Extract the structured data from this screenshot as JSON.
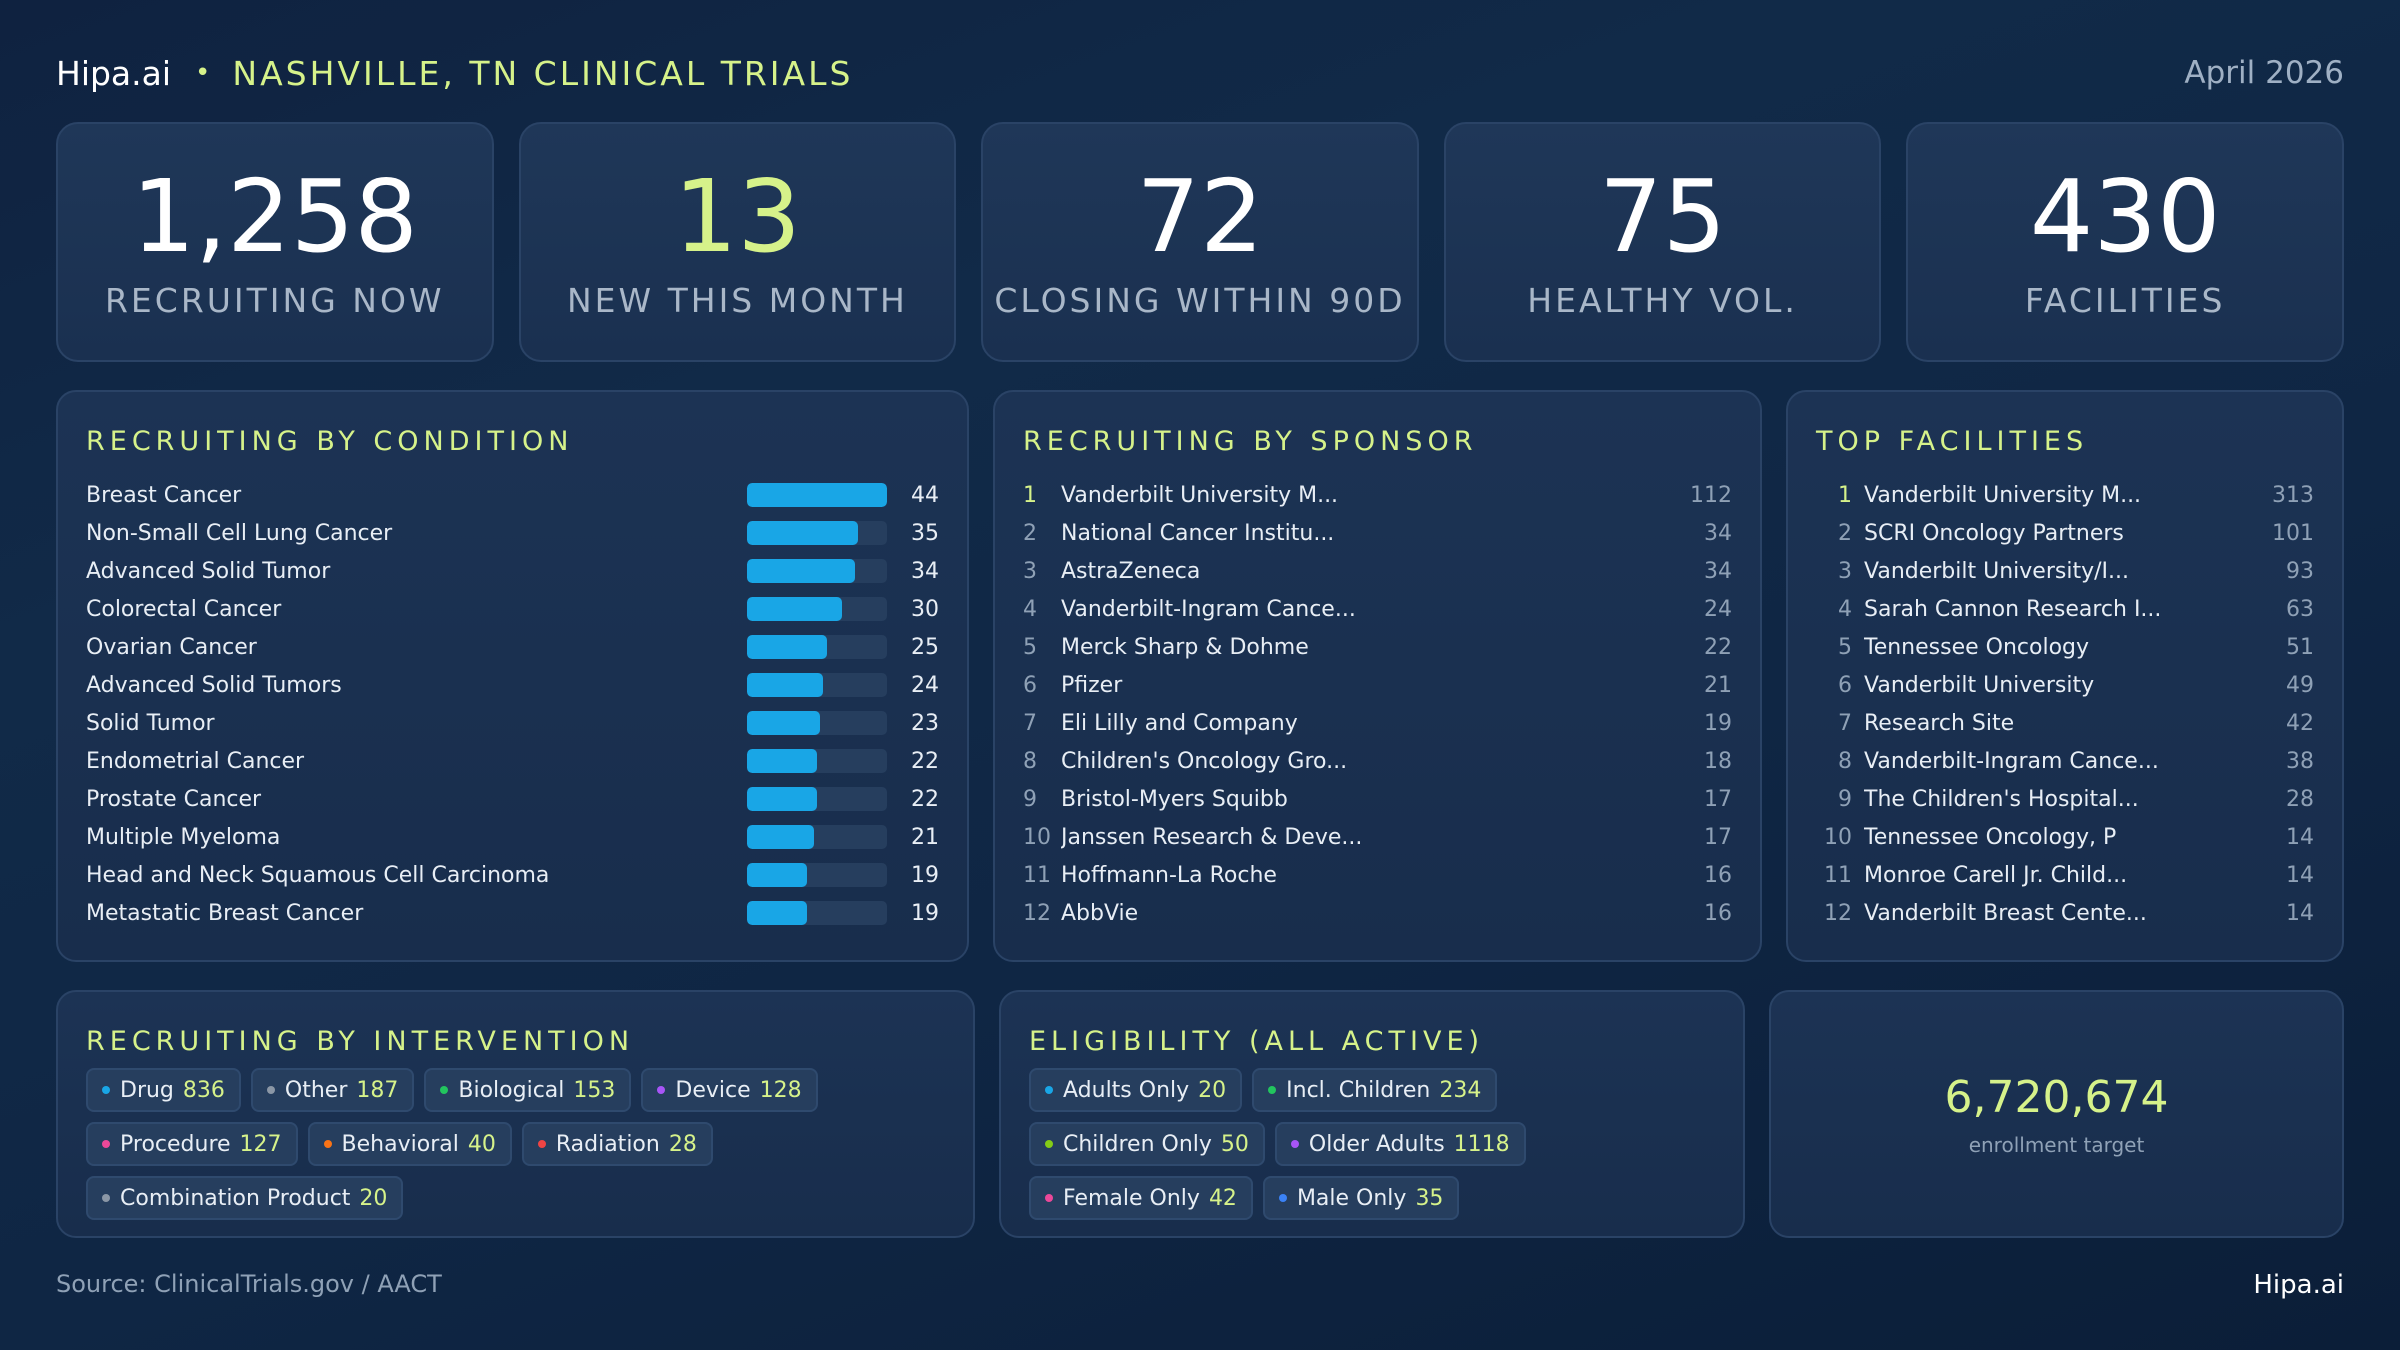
{
  "header": {
    "brand": "Hipa.ai",
    "separator": "•",
    "headline": "NASHVILLE, TN CLINICAL TRIALS",
    "date": "April 2026"
  },
  "stats": [
    {
      "value": "1,258",
      "label": "RECRUITING NOW",
      "accent": false
    },
    {
      "value": "13",
      "label": "NEW THIS MONTH",
      "accent": true
    },
    {
      "value": "72",
      "label": "CLOSING WITHIN 90D",
      "accent": false
    },
    {
      "value": "75",
      "label": "HEALTHY VOL.",
      "accent": false
    },
    {
      "value": "430",
      "label": "FACILITIES",
      "accent": false
    }
  ],
  "by_condition": {
    "title": "RECRUITING BY CONDITION",
    "bar_color": "#19a6e6",
    "max": 44,
    "items": [
      {
        "name": "Breast Cancer",
        "value": 44
      },
      {
        "name": "Non-Small Cell Lung Cancer",
        "value": 35
      },
      {
        "name": "Advanced Solid Tumor",
        "value": 34
      },
      {
        "name": "Colorectal Cancer",
        "value": 30
      },
      {
        "name": "Ovarian Cancer",
        "value": 25
      },
      {
        "name": "Advanced Solid Tumors",
        "value": 24
      },
      {
        "name": "Solid Tumor",
        "value": 23
      },
      {
        "name": "Endometrial Cancer",
        "value": 22
      },
      {
        "name": "Prostate Cancer",
        "value": 22
      },
      {
        "name": "Multiple Myeloma",
        "value": 21
      },
      {
        "name": "Head and Neck Squamous Cell Carcinoma",
        "value": 19
      },
      {
        "name": "Metastatic Breast Cancer",
        "value": 19
      }
    ]
  },
  "by_sponsor": {
    "title": "RECRUITING BY SPONSOR",
    "items": [
      {
        "rank": "1",
        "name": "Vanderbilt University M...",
        "count": "112"
      },
      {
        "rank": "2",
        "name": "National Cancer Institu...",
        "count": "34"
      },
      {
        "rank": "3",
        "name": "AstraZeneca",
        "count": "34"
      },
      {
        "rank": "4",
        "name": "Vanderbilt-Ingram Cance...",
        "count": "24"
      },
      {
        "rank": "5",
        "name": "Merck Sharp & Dohme",
        "count": "22"
      },
      {
        "rank": "6",
        "name": "Pfizer",
        "count": "21"
      },
      {
        "rank": "7",
        "name": "Eli Lilly and Company",
        "count": "19"
      },
      {
        "rank": "8",
        "name": "Children's Oncology Gro...",
        "count": "18"
      },
      {
        "rank": "9",
        "name": "Bristol-Myers Squibb",
        "count": "17"
      },
      {
        "rank": "10",
        "name": "Janssen Research & Deve...",
        "count": "17"
      },
      {
        "rank": "11",
        "name": "Hoffmann-La Roche",
        "count": "16"
      },
      {
        "rank": "12",
        "name": "AbbVie",
        "count": "16"
      }
    ]
  },
  "top_facilities": {
    "title": "TOP FACILITIES",
    "items": [
      {
        "rank": "1",
        "name": "Vanderbilt University M...",
        "count": "313"
      },
      {
        "rank": "2",
        "name": "SCRI Oncology Partners",
        "count": "101"
      },
      {
        "rank": "3",
        "name": "Vanderbilt University/I...",
        "count": "93"
      },
      {
        "rank": "4",
        "name": "Sarah Cannon Research I...",
        "count": "63"
      },
      {
        "rank": "5",
        "name": "Tennessee Oncology",
        "count": "51"
      },
      {
        "rank": "6",
        "name": "Vanderbilt University",
        "count": "49"
      },
      {
        "rank": "7",
        "name": "Research Site",
        "count": "42"
      },
      {
        "rank": "8",
        "name": "Vanderbilt-Ingram Cance...",
        "count": "38"
      },
      {
        "rank": "9",
        "name": "The Children's Hospital...",
        "count": "28"
      },
      {
        "rank": "10",
        "name": "Tennessee Oncology, P",
        "count": "14"
      },
      {
        "rank": "11",
        "name": "Monroe Carell Jr. Child...",
        "count": "14"
      },
      {
        "rank": "12",
        "name": "Vanderbilt Breast Cente...",
        "count": "14"
      }
    ]
  },
  "by_intervention": {
    "title": "RECRUITING BY INTERVENTION",
    "chips": [
      {
        "label": "Drug",
        "count": "836",
        "color": "#19a6e6"
      },
      {
        "label": "Other",
        "count": "187",
        "color": "#8b97a6"
      },
      {
        "label": "Biological",
        "count": "153",
        "color": "#22c55e"
      },
      {
        "label": "Device",
        "count": "128",
        "color": "#a855f7"
      },
      {
        "label": "Procedure",
        "count": "127",
        "color": "#ec4899"
      },
      {
        "label": "Behavioral",
        "count": "40",
        "color": "#f97316"
      },
      {
        "label": "Radiation",
        "count": "28",
        "color": "#ef4444"
      },
      {
        "label": "Combination Product",
        "count": "20",
        "color": "#8b97a6"
      }
    ]
  },
  "eligibility": {
    "title": "ELIGIBILITY (ALL ACTIVE)",
    "chips": [
      {
        "label": "Adults Only",
        "count": "20",
        "color": "#19a6e6"
      },
      {
        "label": "Incl. Children",
        "count": "234",
        "color": "#22c55e"
      },
      {
        "label": "Children Only",
        "count": "50",
        "color": "#84cc16"
      },
      {
        "label": "Older Adults",
        "count": "1118",
        "color": "#a855f7"
      },
      {
        "label": "Female Only",
        "count": "42",
        "color": "#ec4899"
      },
      {
        "label": "Male Only",
        "count": "35",
        "color": "#3b82f6"
      }
    ]
  },
  "enrollment": {
    "value": "6,720,674",
    "label": "enrollment target"
  },
  "footer": {
    "source": "Source: ClinicalTrials.gov / AACT",
    "brand": "Hipa.ai"
  }
}
